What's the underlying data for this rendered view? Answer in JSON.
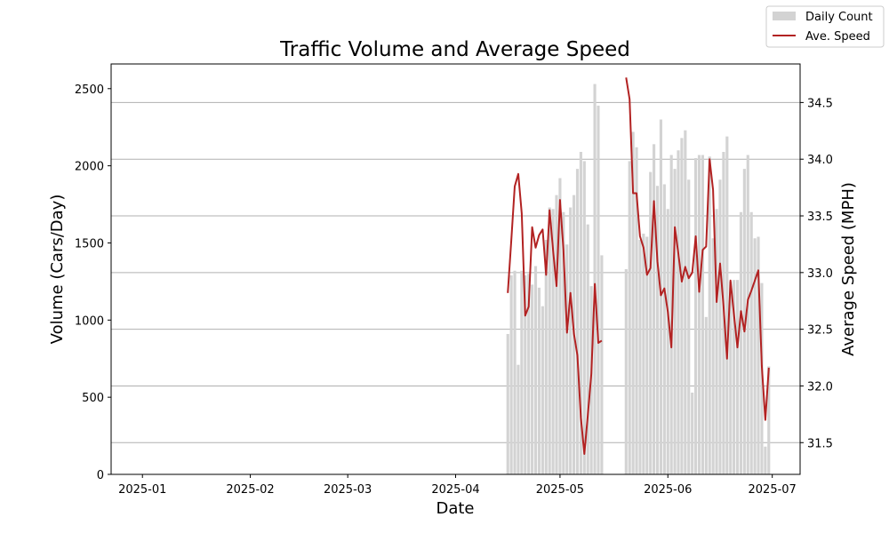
{
  "chart_data": {
    "type": "bar+line",
    "title": "Traffic Volume and Average Speed",
    "xlabel": "Date",
    "ylabel_left": "Volume (Cars/Day)",
    "ylabel_right": "Average Speed (MPH)",
    "x_range": [
      "2024-12-23",
      "2025-07-09"
    ],
    "x_ticks": [
      "2025-01",
      "2025-02",
      "2025-03",
      "2025-04",
      "2025-05",
      "2025-06",
      "2025-07"
    ],
    "x_tick_dates": [
      "2025-01-01",
      "2025-02-01",
      "2025-03-01",
      "2025-04-01",
      "2025-05-01",
      "2025-06-01",
      "2025-07-01"
    ],
    "y_left_range": [
      0,
      2660
    ],
    "y_left_ticks": [
      0,
      500,
      1000,
      1500,
      2000,
      2500
    ],
    "y_right_range": [
      31.22,
      34.84
    ],
    "y_right_ticks": [
      31.5,
      32.0,
      32.5,
      33.0,
      33.5,
      34.0,
      34.5
    ],
    "grid": "horizontal lines at right-axis ticks",
    "legend_position": "top-right, outside plot",
    "colors": {
      "bars": "#d3d3d3",
      "line": "#b22222"
    },
    "series": [
      {
        "name": "Daily Count",
        "type": "bar",
        "points": [
          [
            "2025-04-16",
            910
          ],
          [
            "2025-04-17",
            1290
          ],
          [
            "2025-04-18",
            1320
          ],
          [
            "2025-04-19",
            710
          ],
          [
            "2025-04-20",
            1320
          ],
          [
            "2025-04-21",
            1290
          ],
          [
            "2025-04-22",
            1300
          ],
          [
            "2025-04-23",
            1230
          ],
          [
            "2025-04-24",
            1350
          ],
          [
            "2025-04-25",
            1210
          ],
          [
            "2025-04-26",
            1090
          ],
          [
            "2025-04-27",
            1520
          ],
          [
            "2025-04-28",
            1730
          ],
          [
            "2025-04-29",
            1720
          ],
          [
            "2025-04-30",
            1810
          ],
          [
            "2025-05-01",
            1920
          ],
          [
            "2025-05-02",
            1700
          ],
          [
            "2025-05-03",
            1490
          ],
          [
            "2025-05-04",
            1730
          ],
          [
            "2025-05-05",
            1810
          ],
          [
            "2025-05-06",
            1980
          ],
          [
            "2025-05-07",
            2090
          ],
          [
            "2025-05-08",
            2030
          ],
          [
            "2025-05-09",
            1620
          ],
          [
            "2025-05-10",
            1220
          ],
          [
            "2025-05-11",
            2530
          ],
          [
            "2025-05-12",
            2390
          ],
          [
            "2025-05-13",
            1420
          ],
          [
            "2025-05-20",
            1330
          ],
          [
            "2025-05-21",
            2030
          ],
          [
            "2025-05-22",
            2220
          ],
          [
            "2025-05-23",
            2120
          ],
          [
            "2025-05-24",
            1520
          ],
          [
            "2025-05-25",
            1560
          ],
          [
            "2025-05-26",
            1540
          ],
          [
            "2025-05-27",
            1960
          ],
          [
            "2025-05-28",
            2140
          ],
          [
            "2025-05-29",
            1870
          ],
          [
            "2025-05-30",
            2300
          ],
          [
            "2025-05-31",
            1880
          ],
          [
            "2025-06-01",
            1720
          ],
          [
            "2025-06-02",
            2070
          ],
          [
            "2025-06-03",
            1980
          ],
          [
            "2025-06-04",
            2100
          ],
          [
            "2025-06-05",
            2180
          ],
          [
            "2025-06-06",
            2230
          ],
          [
            "2025-06-07",
            1910
          ],
          [
            "2025-06-08",
            530
          ],
          [
            "2025-06-09",
            2050
          ],
          [
            "2025-06-10",
            2070
          ],
          [
            "2025-06-11",
            2070
          ],
          [
            "2025-06-12",
            1020
          ],
          [
            "2025-06-13",
            2060
          ],
          [
            "2025-06-14",
            1530
          ],
          [
            "2025-06-15",
            1720
          ],
          [
            "2025-06-16",
            1910
          ],
          [
            "2025-06-17",
            2090
          ],
          [
            "2025-06-18",
            2190
          ],
          [
            "2025-06-19",
            1250
          ],
          [
            "2025-06-20",
            1260
          ],
          [
            "2025-06-21",
            1260
          ],
          [
            "2025-06-22",
            1700
          ],
          [
            "2025-06-23",
            1980
          ],
          [
            "2025-06-24",
            2070
          ],
          [
            "2025-06-25",
            1700
          ],
          [
            "2025-06-26",
            1530
          ],
          [
            "2025-06-27",
            1540
          ],
          [
            "2025-06-28",
            1240
          ],
          [
            "2025-06-29",
            180
          ],
          [
            "2025-06-30",
            700
          ]
        ]
      },
      {
        "name": "Ave. Speed",
        "type": "line",
        "segments": [
          [
            [
              "2025-04-16",
              32.82
            ],
            [
              "2025-04-17",
              33.28
            ],
            [
              "2025-04-18",
              33.76
            ],
            [
              "2025-04-19",
              33.87
            ],
            [
              "2025-04-20",
              33.52
            ],
            [
              "2025-04-21",
              32.62
            ],
            [
              "2025-04-22",
              32.7
            ],
            [
              "2025-04-23",
              33.4
            ],
            [
              "2025-04-24",
              33.22
            ],
            [
              "2025-04-25",
              33.33
            ],
            [
              "2025-04-26",
              33.38
            ],
            [
              "2025-04-27",
              32.98
            ],
            [
              "2025-04-28",
              33.55
            ],
            [
              "2025-04-29",
              33.2
            ],
            [
              "2025-04-30",
              32.88
            ],
            [
              "2025-05-01",
              33.64
            ],
            [
              "2025-05-02",
              33.2
            ],
            [
              "2025-05-03",
              32.47
            ],
            [
              "2025-05-04",
              32.82
            ],
            [
              "2025-05-05",
              32.46
            ],
            [
              "2025-05-06",
              32.27
            ],
            [
              "2025-05-07",
              31.72
            ],
            [
              "2025-05-08",
              31.4
            ],
            [
              "2025-05-09",
              31.74
            ],
            [
              "2025-05-10",
              32.11
            ],
            [
              "2025-05-11",
              32.9
            ],
            [
              "2025-05-12",
              32.38
            ],
            [
              "2025-05-13",
              32.4
            ]
          ],
          [
            [
              "2025-05-20",
              34.72
            ],
            [
              "2025-05-21",
              34.53
            ],
            [
              "2025-05-22",
              33.7
            ],
            [
              "2025-05-23",
              33.7
            ],
            [
              "2025-05-24",
              33.32
            ],
            [
              "2025-05-25",
              33.22
            ],
            [
              "2025-05-26",
              32.98
            ],
            [
              "2025-05-27",
              33.04
            ],
            [
              "2025-05-28",
              33.63
            ],
            [
              "2025-05-29",
              33.1
            ],
            [
              "2025-05-30",
              32.8
            ],
            [
              "2025-05-31",
              32.86
            ],
            [
              "2025-06-01",
              32.65
            ],
            [
              "2025-06-02",
              32.34
            ],
            [
              "2025-06-03",
              33.4
            ],
            [
              "2025-06-04",
              33.17
            ],
            [
              "2025-06-05",
              32.92
            ],
            [
              "2025-06-06",
              33.05
            ],
            [
              "2025-06-07",
              32.95
            ],
            [
              "2025-06-08",
              33.0
            ],
            [
              "2025-06-09",
              33.32
            ],
            [
              "2025-06-10",
              32.83
            ],
            [
              "2025-06-11",
              33.2
            ],
            [
              "2025-06-12",
              33.23
            ],
            [
              "2025-06-13",
              34.0
            ],
            [
              "2025-06-14",
              33.73
            ],
            [
              "2025-06-15",
              32.74
            ],
            [
              "2025-06-16",
              33.08
            ],
            [
              "2025-06-17",
              32.7
            ],
            [
              "2025-06-18",
              32.24
            ],
            [
              "2025-06-19",
              32.93
            ],
            [
              "2025-06-20",
              32.63
            ],
            [
              "2025-06-21",
              32.34
            ],
            [
              "2025-06-22",
              32.66
            ],
            [
              "2025-06-23",
              32.48
            ],
            [
              "2025-06-24",
              32.76
            ],
            [
              "2025-06-25",
              32.84
            ],
            [
              "2025-06-26",
              32.93
            ],
            [
              "2025-06-27",
              33.02
            ],
            [
              "2025-06-28",
              32.18
            ],
            [
              "2025-06-29",
              31.7
            ],
            [
              "2025-06-30",
              32.16
            ]
          ]
        ]
      }
    ],
    "legend": {
      "bar_label": "Daily Count",
      "line_label": "Ave. Speed"
    }
  }
}
